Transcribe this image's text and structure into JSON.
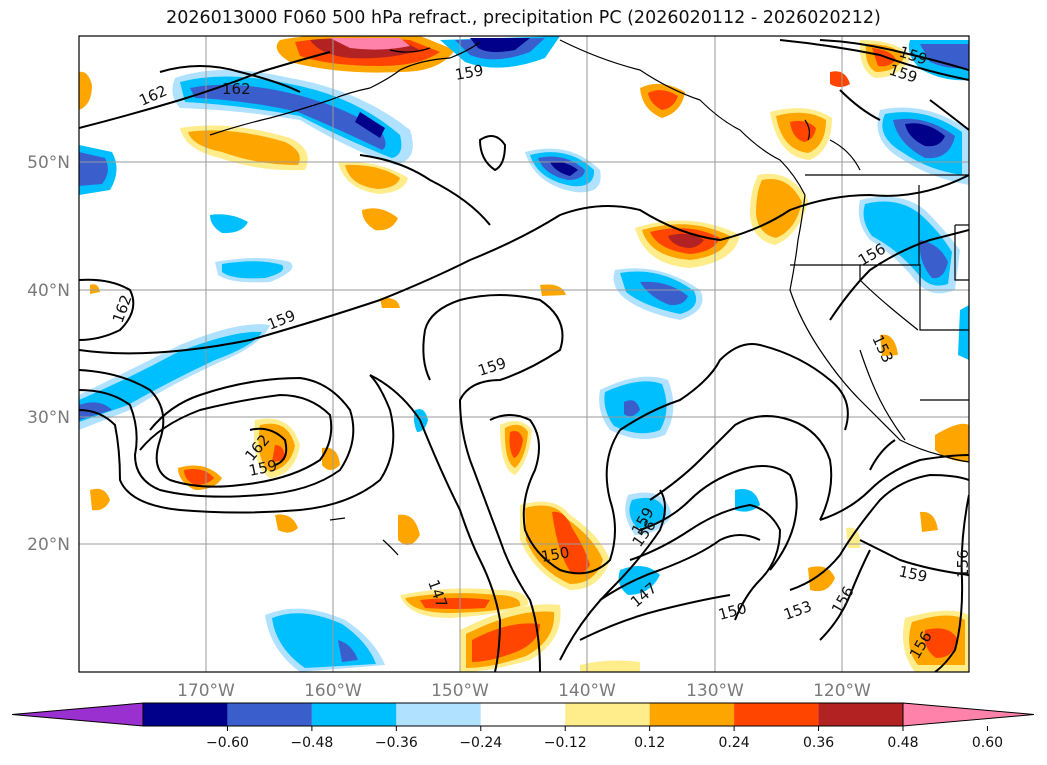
{
  "title": "2026013000 F060 500 hPa refract., precipitation PC (2026020112 - 2026020212)",
  "lat_labels": [
    "50°N",
    "40°N",
    "30°N",
    "20°N"
  ],
  "lon_labels": [
    "170°W",
    "160°W",
    "150°W",
    "140°W",
    "130°W",
    "120°W"
  ],
  "colorbar": {
    "colors": [
      "#9b30d0",
      "#00008b",
      "#3a5fcd",
      "#00bfff",
      "#b0e2ff",
      "#ffffff",
      "#ffec8b",
      "#ffa500",
      "#ff4500",
      "#b22222",
      "#ff82ab"
    ],
    "ticks": [
      "−0.60",
      "−0.48",
      "−0.36",
      "−0.24",
      "−0.12",
      "0.12",
      "0.24",
      "0.36",
      "0.48",
      "0.60"
    ]
  },
  "contour_labels": [
    "162",
    "162",
    "159",
    "159",
    "159",
    "162",
    "159",
    "159",
    "162",
    "159",
    "156",
    "153",
    "159",
    "156",
    "150",
    "147",
    "147",
    "150",
    "153",
    "156",
    "156",
    "159",
    "156"
  ]
}
